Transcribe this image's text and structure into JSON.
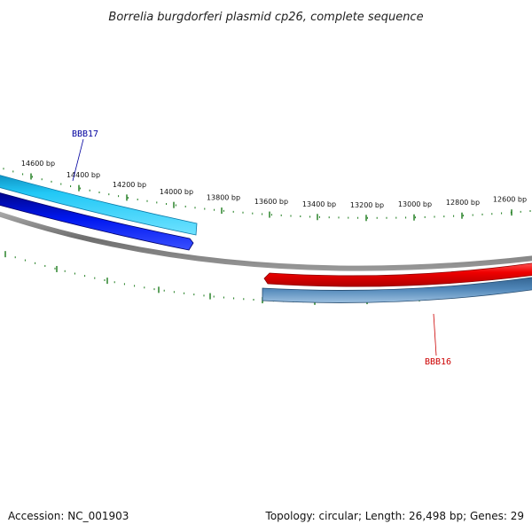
{
  "title": "Borrelia burgdorferi plasmid cp26, complete sequence",
  "footer": {
    "accession": "Accession: NC_001903",
    "summary": "Topology: circular; Length: 26,498 bp; Genes: 29"
  },
  "ticks": [
    {
      "label": "14600 bp"
    },
    {
      "label": "14400 bp"
    },
    {
      "label": "14200 bp"
    },
    {
      "label": "14000 bp"
    },
    {
      "label": "13800 bp"
    },
    {
      "label": "13600 bp"
    },
    {
      "label": "13400 bp"
    },
    {
      "label": "13200 bp"
    },
    {
      "label": "13000 bp"
    },
    {
      "label": "12800 bp"
    },
    {
      "label": "12600 bp"
    }
  ],
  "genes": {
    "bbb17": {
      "label": "BBB17",
      "color": "#00009f"
    },
    "bbb16": {
      "label": "BBB16",
      "color": "#cc0000"
    }
  },
  "colors": {
    "forward_strand_light": "#1fc7f5",
    "forward_strand_dark": "#0010e0",
    "reverse_strand_red": "#ee0000",
    "reverse_strand_steel": "#4a7fb0",
    "backbone": "#808080",
    "ticks": "#1a7a1a"
  }
}
